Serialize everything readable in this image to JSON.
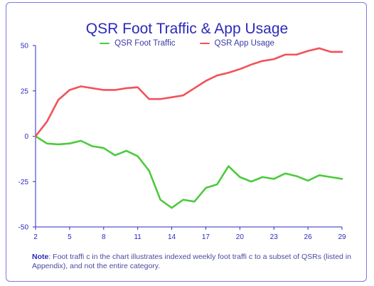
{
  "title": "QSR Foot Traffic & App Usage",
  "note": {
    "label": "Note",
    "text": ": Foot traffi c in the chart illustrates indexed weekly foot traffi c to a subset of QSRs (listed in Appendix), and not the entire category."
  },
  "colors": {
    "foot_traffic": "#4ccb3c",
    "app_usage": "#f2525a",
    "frame": "#7b78e0",
    "text": "#2d2ab8"
  },
  "chart_data": {
    "type": "line",
    "title": "QSR Foot Traffic & App Usage",
    "xlabel": "",
    "ylabel": "",
    "xlim": [
      2,
      29
    ],
    "ylim": [
      -50,
      50
    ],
    "x_ticks": [
      2,
      5,
      8,
      11,
      14,
      17,
      20,
      23,
      26,
      29
    ],
    "y_ticks": [
      50,
      25,
      0,
      -25,
      -50
    ],
    "grid": false,
    "legend_position": "top",
    "x": [
      2,
      3,
      4,
      5,
      6,
      7,
      8,
      9,
      10,
      11,
      12,
      13,
      14,
      15,
      16,
      17,
      18,
      19,
      20,
      21,
      22,
      23,
      24,
      25,
      26,
      27,
      28,
      29
    ],
    "series": [
      {
        "name": "QSR Foot Traffic",
        "color": "#4ccb3c",
        "values": [
          0,
          -4,
          -4.5,
          -4,
          -2.5,
          -5.5,
          -6.5,
          -10.5,
          -8,
          -11,
          -19,
          -35,
          -39.5,
          -35,
          -36,
          -28.5,
          -26.5,
          -16.5,
          -22.5,
          -25,
          -22.5,
          -23.5,
          -20.5,
          -22,
          -24.5,
          -21.5,
          -22.5,
          -23.5
        ]
      },
      {
        "name": "QSR App Usage",
        "color": "#f2525a",
        "values": [
          0,
          8,
          20,
          25.5,
          27.5,
          26.5,
          25.5,
          25.5,
          26.5,
          27,
          20.5,
          20.5,
          21.5,
          22.5,
          26.5,
          30.5,
          33.5,
          35,
          37,
          39.5,
          41.5,
          42.5,
          45,
          45,
          47,
          48.5,
          46.5,
          46.5
        ]
      }
    ]
  }
}
